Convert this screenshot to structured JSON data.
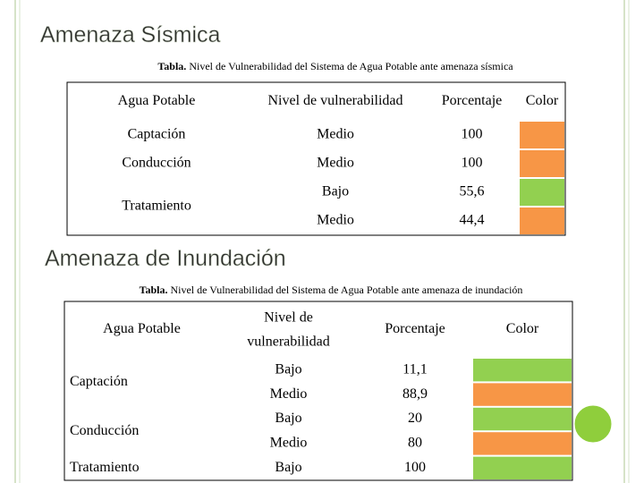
{
  "sections": [
    {
      "title": "Amenaza Sísmica",
      "caption": {
        "label": "Tabla.",
        "text": "Nivel de Vulnerabilidad del Sistema de Agua Potable ante amenaza sísmica"
      },
      "table": {
        "headers": [
          "Agua Potable",
          "Nivel de vulnerabilidad",
          "Porcentaje",
          "Color"
        ],
        "groups": [
          {
            "name": "Captación",
            "levels": [
              {
                "level": "Medio",
                "percent": "100",
                "color": "#f79646"
              }
            ]
          },
          {
            "name": "Conducción",
            "levels": [
              {
                "level": "Medio",
                "percent": "100",
                "color": "#f79646"
              }
            ]
          },
          {
            "name": "Tratamiento",
            "levels": [
              {
                "level": "Bajo",
                "percent": "55,6",
                "color": "#92d050"
              },
              {
                "level": "Medio",
                "percent": "44,4",
                "color": "#f79646"
              }
            ]
          }
        ]
      }
    },
    {
      "title": "Amenaza de Inundación",
      "caption": {
        "label": "Tabla.",
        "text": "Nivel de Vulnerabilidad del Sistema de Agua Potable ante amenaza de inundación"
      },
      "table": {
        "headers": [
          "Agua Potable",
          "Nivel de vulnerabilidad",
          "Porcentaje",
          "Color"
        ],
        "groups": [
          {
            "name": "Captación",
            "levels": [
              {
                "level": "Bajo",
                "percent": "11,1",
                "color": "#92d050"
              },
              {
                "level": "Medio",
                "percent": "88,9",
                "color": "#f79646"
              }
            ]
          },
          {
            "name": "Conducción",
            "levels": [
              {
                "level": "Bajo",
                "percent": "20",
                "color": "#92d050"
              },
              {
                "level": "Medio",
                "percent": "80",
                "color": "#f79646"
              }
            ]
          },
          {
            "name": "Tratamiento",
            "levels": [
              {
                "level": "Bajo",
                "percent": "100",
                "color": "#92d050"
              }
            ]
          }
        ]
      }
    }
  ]
}
